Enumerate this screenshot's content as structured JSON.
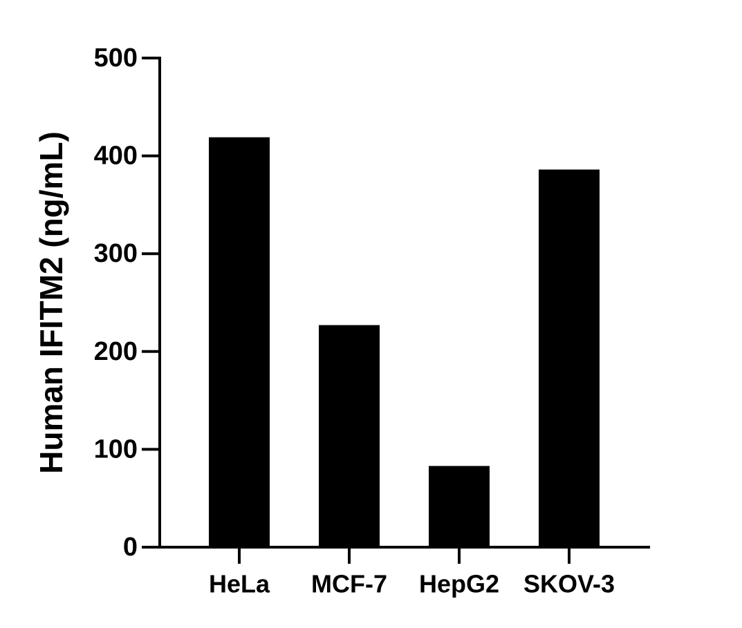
{
  "chart_data": {
    "type": "bar",
    "y_label": "Human IFITM2 (ng/mL)",
    "categories": [
      "HeLa",
      "MCF-7",
      "HepG2",
      "SKOV-3"
    ],
    "values": [
      419,
      227,
      83,
      386
    ],
    "color": "#000000",
    "ylim": [
      0,
      500
    ],
    "yticks": [
      0,
      100,
      200,
      300,
      400,
      500
    ],
    "grid": false
  }
}
